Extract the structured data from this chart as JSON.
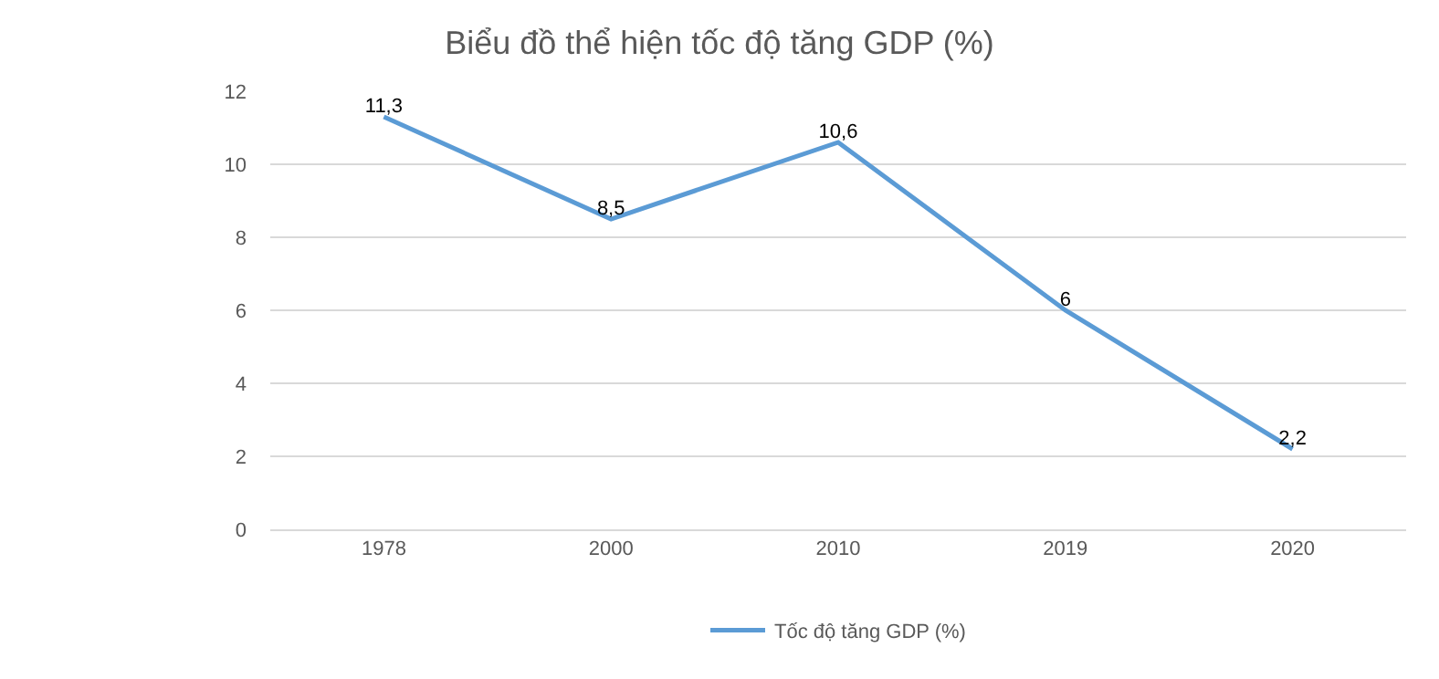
{
  "chart_data": {
    "type": "line",
    "title": "Biểu đồ thể hiện tốc độ tăng GDP (%)",
    "categories": [
      "1978",
      "2000",
      "2010",
      "2019",
      "2020"
    ],
    "series": [
      {
        "name": "Tốc độ tăng GDP (%)",
        "color": "#5b9bd5",
        "values": [
          11.3,
          8.5,
          10.6,
          6,
          2.2
        ],
        "value_labels": [
          "11,3",
          "8,5",
          "10,6",
          "6",
          "2,2"
        ]
      }
    ],
    "ylim": [
      0,
      12
    ],
    "yticks": [
      0,
      2,
      4,
      6,
      8,
      10,
      12
    ],
    "grid": "y",
    "legend": "bottom",
    "marker": "none",
    "line_style": "solid"
  }
}
